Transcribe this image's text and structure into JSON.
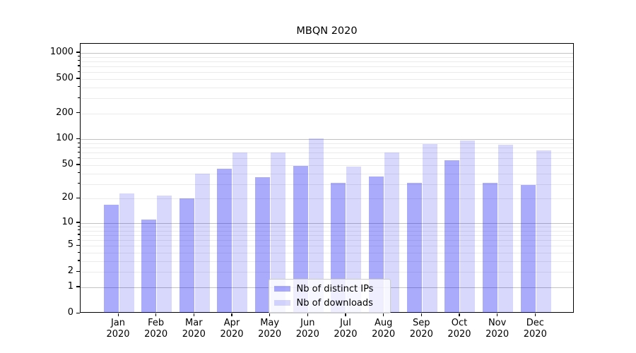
{
  "chart_data": {
    "type": "bar",
    "title": "MBQN 2020",
    "categories": [
      "Jan 2020",
      "Feb 2020",
      "Mar 2020",
      "Apr 2020",
      "May 2020",
      "Jun 2020",
      "Jul 2020",
      "Aug 2020",
      "Sep 2020",
      "Oct 2020",
      "Nov 2020",
      "Dec 2020"
    ],
    "series": [
      {
        "name": "Nb of distinct IPs",
        "values": [
          17,
          11,
          20,
          45,
          36,
          49,
          31,
          37,
          31,
          57,
          31,
          29
        ],
        "fill": "#0f0ff5",
        "opacity": 0.35,
        "rendered_color": "#a9a9fa"
      },
      {
        "name": "Nb of downloads",
        "values": [
          23,
          22,
          40,
          70,
          70,
          103,
          48,
          70,
          89,
          98,
          87,
          74
        ],
        "fill": "#0f0ff5",
        "opacity": 0.16,
        "rendered_color": "#dadafc"
      }
    ],
    "xlabel": "",
    "ylabel": "",
    "yscale": "log1p",
    "yticks": [
      0,
      1,
      2,
      5,
      10,
      20,
      50,
      100,
      200,
      500,
      1000
    ],
    "ytick_majors": [
      1,
      10,
      100,
      1000
    ],
    "ylim": [
      0,
      1250
    ],
    "grid": "horizontal major+minor",
    "legend_position": "inside lower-center"
  },
  "legend": {
    "items": [
      "Nb of distinct IPs",
      "Nb of downloads"
    ]
  },
  "colors": {
    "bar_dark": "#a9a9fa",
    "bar_light": "#dadafc",
    "grid_major": "#c2c2c2",
    "grid_minor": "#ebebeb",
    "spine": "#000000",
    "text": "#000000",
    "legend_border": "#cccccc"
  }
}
